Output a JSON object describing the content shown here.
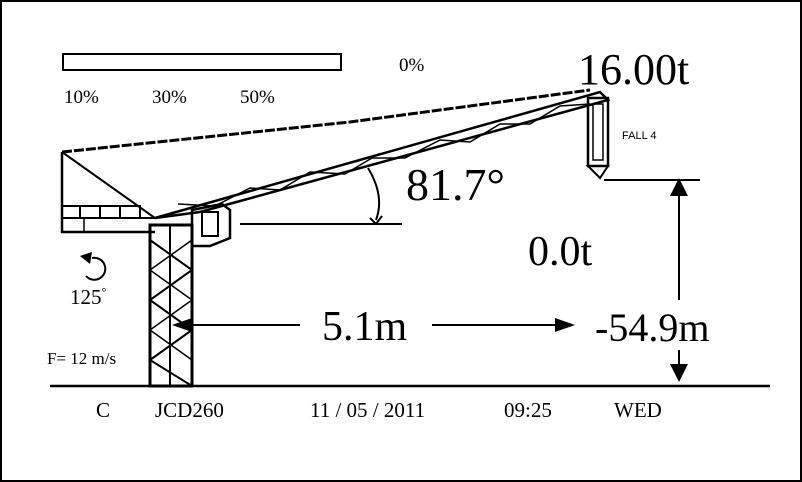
{
  "load_bar": {
    "percent": 0,
    "percent_label": "0%",
    "scale_labels": [
      "10%",
      "30%",
      "50%"
    ]
  },
  "load": {
    "max_load": "16.00t",
    "current_load": "0.0t",
    "fall_label": "FALL 4"
  },
  "boom": {
    "angle": "81.7°",
    "radius": "5.1m",
    "hook_height": "-54.9m"
  },
  "slew": {
    "angle": "125",
    "degree_symbol": "°"
  },
  "wind": {
    "speed": "F= 12 m/s"
  },
  "status_bar": {
    "mode": "C",
    "model": "JCD260",
    "date": "11 / 05 / 2011",
    "time": "09:25",
    "day": "WED"
  },
  "colors": {
    "foreground": "#000000",
    "background": "#ffffff"
  },
  "icons": {
    "slew": "rotate-arrow-icon",
    "boom": "luffing-boom-icon",
    "mast": "tower-mast-icon",
    "hook": "hook-block-icon"
  }
}
